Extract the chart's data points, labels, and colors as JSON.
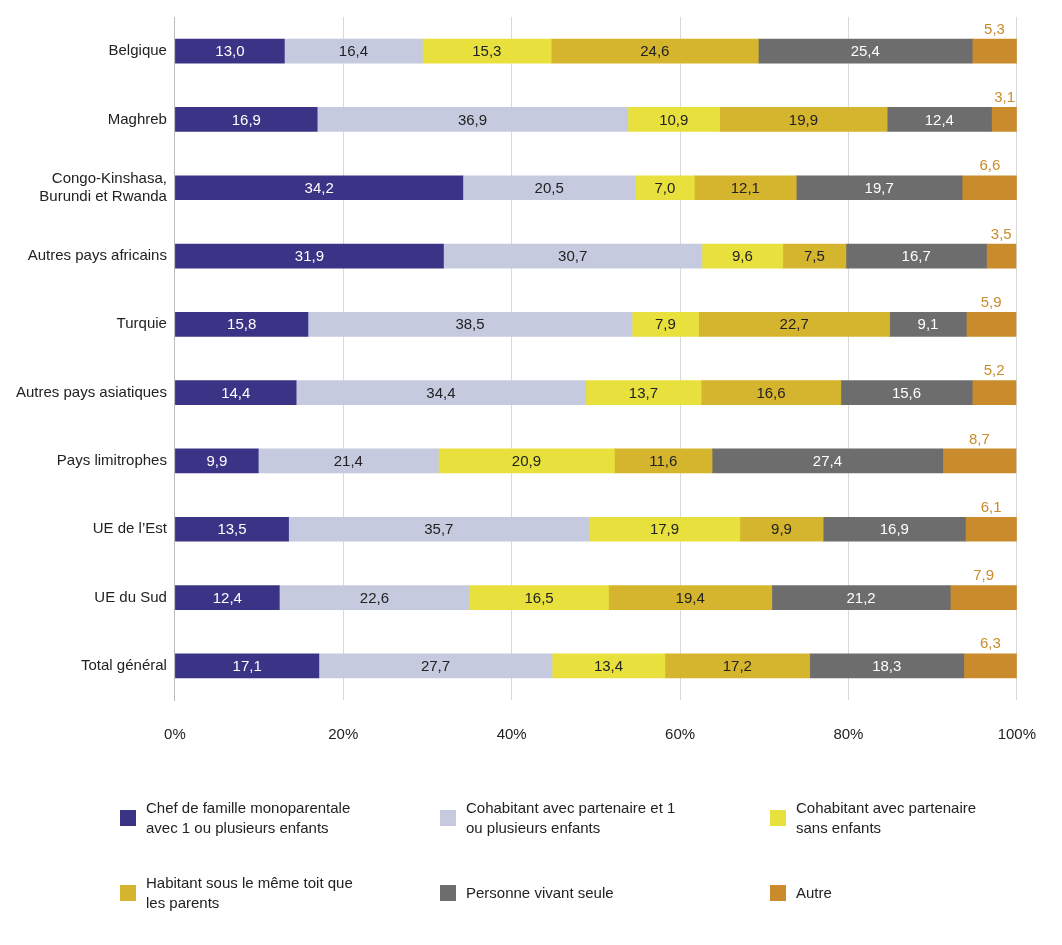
{
  "chart_data": {
    "type": "bar",
    "orientation": "horizontal",
    "stacked": true,
    "grid": "x",
    "legend": "bottom",
    "categories": [
      "Belgique",
      "Maghreb",
      "Congo-Kinshasa, Burundi et Rwanda",
      "Autres pays africains",
      "Turquie",
      "Autres pays asiatiques",
      "Pays limitrophes",
      "UE de l’Est",
      "UE du Sud",
      "Total général"
    ],
    "xlim": [
      0,
      100
    ],
    "xticks": [
      {
        "value": 0,
        "label": "0%"
      },
      {
        "value": 20,
        "label": "20%"
      },
      {
        "value": 40,
        "label": "40%"
      },
      {
        "value": 60,
        "label": "60%"
      },
      {
        "value": 80,
        "label": "80%"
      },
      {
        "value": 100,
        "label": "100%"
      }
    ],
    "series": [
      {
        "name": "Chef de famille monoparentale avec 1 ou plusieurs enfants",
        "color": "#3b3486",
        "values": [
          13.0,
          16.9,
          34.2,
          31.9,
          15.8,
          14.4,
          9.9,
          13.5,
          12.4,
          17.1
        ],
        "value_labels": [
          "13,0",
          "16,9",
          "34,2",
          "31,9",
          "15,8",
          "14,4",
          "9,9",
          "13,5",
          "12,4",
          "17,1"
        ]
      },
      {
        "name": "Cohabitant avec partenaire et 1 ou plusieurs enfants",
        "color": "#c5cadf",
        "values": [
          16.4,
          36.9,
          20.5,
          30.7,
          38.5,
          34.4,
          21.4,
          35.7,
          22.6,
          27.7
        ],
        "value_labels": [
          "16,4",
          "36,9",
          "20,5",
          "30,7",
          "38,5",
          "34,4",
          "21,4",
          "35,7",
          "22,6",
          "27,7"
        ]
      },
      {
        "name": "Cohabitant avec partenaire sans enfants",
        "color": "#e8e03c",
        "values": [
          15.3,
          10.9,
          7.0,
          9.6,
          7.9,
          13.7,
          20.9,
          17.9,
          16.5,
          13.4
        ],
        "value_labels": [
          "15,3",
          "10,9",
          "7,0",
          "9,6",
          "7,9",
          "13,7",
          "20,9",
          "17,9",
          "16,5",
          "13,4"
        ]
      },
      {
        "name": "Habitant sous le même toit que les parents",
        "color": "#d6b52e",
        "values": [
          24.6,
          19.9,
          12.1,
          7.5,
          22.7,
          16.6,
          11.6,
          9.9,
          19.4,
          17.2
        ],
        "value_labels": [
          "24,6",
          "19,9",
          "12,1",
          "7,5",
          "22,7",
          "16,6",
          "11,6",
          "9,9",
          "19,4",
          "17,2"
        ]
      },
      {
        "name": "Personne vivant seule",
        "color": "#6d6d6d",
        "values": [
          25.4,
          12.4,
          19.7,
          16.7,
          9.1,
          15.6,
          27.4,
          16.9,
          21.2,
          18.3
        ],
        "value_labels": [
          "25,4",
          "12,4",
          "19,7",
          "16,7",
          "9,1",
          "15,6",
          "27,4",
          "16,9",
          "21,2",
          "18,3"
        ]
      },
      {
        "name": "Autre",
        "color": "#c98b2b",
        "values": [
          5.3,
          3.1,
          6.6,
          3.5,
          5.9,
          5.2,
          8.7,
          6.1,
          7.9,
          6.3
        ],
        "value_labels": [
          "5,3",
          "3,1",
          "6,6",
          "3,5",
          "5,9",
          "5,2",
          "8,7",
          "6,1",
          "7,9",
          "6,3"
        ]
      }
    ]
  }
}
